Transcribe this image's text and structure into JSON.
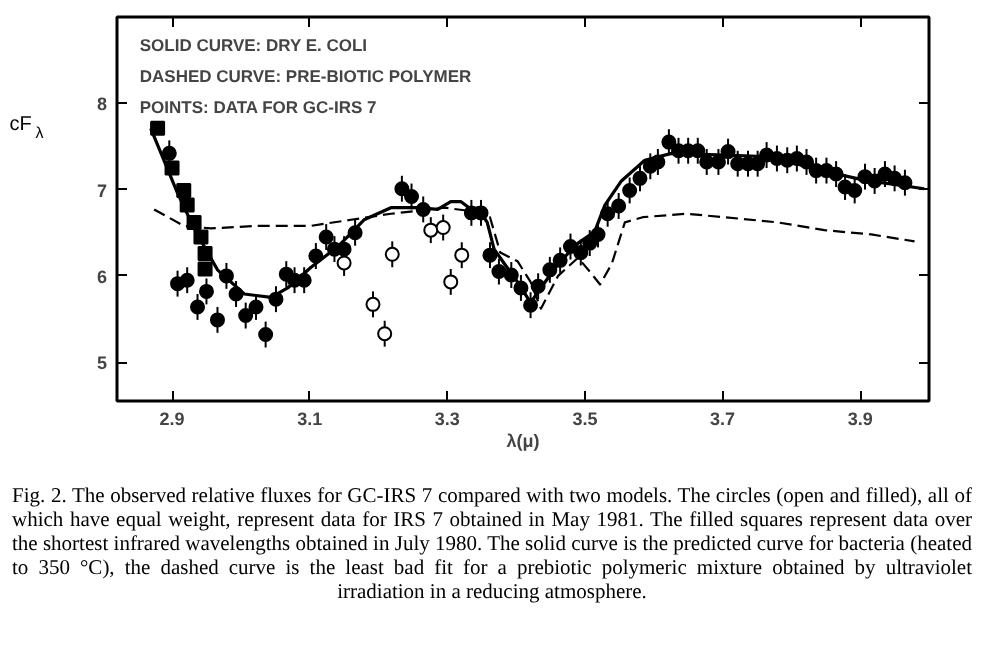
{
  "chart_data": {
    "type": "scatter",
    "xlabel": "λ(μ)",
    "ylabel": "cF$_{λ}$",
    "xlim": [
      2.82,
      4.0
    ],
    "ylim": [
      4.55,
      9.0
    ],
    "xticks": [
      2.9,
      3.1,
      3.3,
      3.5,
      3.7,
      3.9
    ],
    "yticks": [
      5,
      6,
      7,
      8
    ],
    "grid": false,
    "annotations": [
      "SOLID CURVE:  DRY E. COLI",
      "DASHED CURVE: PRE-BIOTIC POLYMER",
      "POINTS:  DATA FOR GC-IRS 7",
      "Fig. 2.   The observed relative fluxes for GC-IRS 7 compared with two models. The circles (open and filled), all of which have equal weight, represent data for IRS 7 obtained in May 1981. The filled squares represent data over the shortest infrared wavelengths obtained in July 1980. The solid curve is the predicted curve for bacteria (heated to 350 °C), the dashed curve is the least bad fit for a prebiotic polymeric mixture obtained by ultraviolet irradiation in a reducing atmosphere."
    ],
    "series": [
      {
        "type": "line",
        "color": "#000000",
        "line_style": "solid",
        "marker": "none",
        "x": [
          2.869,
          2.908,
          2.932,
          2.966,
          3.005,
          3.044,
          3.068,
          3.102,
          3.141,
          3.179,
          3.218,
          3.257,
          3.286,
          3.305,
          3.32,
          3.335,
          3.344,
          3.358,
          3.368,
          3.383,
          3.402,
          3.421,
          3.436,
          3.461,
          3.49,
          3.514,
          3.529,
          3.553,
          3.587,
          3.626,
          3.703,
          3.771,
          3.838,
          3.906,
          3.993
        ],
        "values": [
          7.71,
          6.96,
          6.55,
          6.07,
          5.79,
          5.75,
          5.86,
          6.1,
          6.34,
          6.65,
          6.79,
          6.79,
          6.77,
          6.86,
          6.86,
          6.77,
          6.79,
          6.62,
          6.31,
          6.14,
          5.93,
          5.69,
          5.86,
          6.14,
          6.38,
          6.51,
          6.82,
          7.1,
          7.34,
          7.42,
          7.4,
          7.38,
          7.23,
          7.11,
          7.01
        ]
      },
      {
        "type": "line",
        "color": "#000000",
        "line_style": "dashed",
        "marker": "none",
        "x": [
          2.874,
          2.917,
          2.956,
          3.024,
          3.102,
          3.16,
          3.218,
          3.296,
          3.335,
          3.362,
          3.377,
          3.402,
          3.421,
          3.436,
          3.461,
          3.49,
          3.508,
          3.522,
          3.539,
          3.558,
          3.584,
          3.646,
          3.703,
          3.78,
          3.848,
          3.916,
          3.979
        ],
        "values": [
          6.77,
          6.58,
          6.55,
          6.58,
          6.58,
          6.65,
          6.72,
          6.79,
          6.75,
          6.68,
          6.27,
          6.17,
          5.93,
          5.62,
          6.0,
          6.21,
          6.04,
          5.9,
          6.14,
          6.62,
          6.68,
          6.72,
          6.68,
          6.62,
          6.53,
          6.48,
          6.4
        ]
      },
      {
        "color": "#000000",
        "marker": "square",
        "x": [
          2.879,
          2.9,
          2.917,
          2.922,
          2.932,
          2.942,
          2.948,
          2.948
        ],
        "values": [
          7.71,
          7.25,
          6.99,
          6.82,
          6.62,
          6.45,
          6.26,
          6.08
        ]
      },
      {
        "color": "#000000",
        "marker": "circle",
        "x": [
          2.896,
          2.908,
          2.922,
          2.937,
          2.95,
          2.966,
          2.979,
          2.993,
          3.007,
          3.022,
          3.036,
          3.051,
          3.066,
          3.078,
          3.092,
          3.109,
          3.124,
          3.136,
          3.15,
          3.166,
          3.234,
          3.248,
          3.265,
          3.335,
          3.349,
          3.362,
          3.375,
          3.393,
          3.407,
          3.421,
          3.432,
          3.449,
          3.464,
          3.479,
          3.494,
          3.507,
          3.519,
          3.533,
          3.549,
          3.565,
          3.58,
          3.595,
          3.606,
          3.622,
          3.636,
          3.65,
          3.664,
          3.677,
          3.694,
          3.708,
          3.722,
          3.737,
          3.751,
          3.764,
          3.779,
          3.794,
          3.808,
          3.822,
          3.836,
          3.851,
          3.865,
          3.878,
          3.892,
          3.907,
          3.921,
          3.936,
          3.95,
          3.965
        ],
        "values": [
          7.42,
          5.91,
          5.95,
          5.64,
          5.82,
          5.49,
          6.0,
          5.79,
          5.54,
          5.64,
          5.32,
          5.73,
          6.02,
          5.95,
          5.95,
          6.23,
          6.45,
          6.31,
          6.31,
          6.5,
          7.01,
          6.92,
          6.77,
          6.73,
          6.73,
          6.24,
          6.05,
          6.01,
          5.86,
          5.66,
          5.88,
          6.07,
          6.18,
          6.34,
          6.27,
          6.38,
          6.48,
          6.72,
          6.81,
          6.99,
          7.13,
          7.27,
          7.32,
          7.55,
          7.45,
          7.45,
          7.45,
          7.32,
          7.32,
          7.44,
          7.3,
          7.3,
          7.3,
          7.4,
          7.36,
          7.34,
          7.36,
          7.32,
          7.22,
          7.22,
          7.18,
          7.03,
          6.99,
          7.15,
          7.1,
          7.18,
          7.13,
          7.08
        ],
        "errors": [
          0.15,
          0.15,
          0.15,
          0.15,
          0.15,
          0.15,
          0.15,
          0.15,
          0.15,
          0.15,
          0.15,
          0.15,
          0.15,
          0.15,
          0.15,
          0.15,
          0.15,
          0.15,
          0.15,
          0.15,
          0.15,
          0.15,
          0.15,
          0.15,
          0.15,
          0.15,
          0.15,
          0.15,
          0.15,
          0.15,
          0.15,
          0.15,
          0.15,
          0.15,
          0.15,
          0.15,
          0.15,
          0.15,
          0.15,
          0.15,
          0.15,
          0.15,
          0.15,
          0.15,
          0.15,
          0.15,
          0.15,
          0.15,
          0.15,
          0.15,
          0.15,
          0.15,
          0.15,
          0.15,
          0.15,
          0.15,
          0.15,
          0.15,
          0.15,
          0.15,
          0.15,
          0.15,
          0.15,
          0.15,
          0.15,
          0.15,
          0.15,
          0.15
        ]
      },
      {
        "color": "#ffffff",
        "marker": "circle",
        "x": [
          3.15,
          3.192,
          3.209,
          3.22,
          3.276,
          3.294,
          3.305,
          3.321
        ],
        "values": [
          6.15,
          5.67,
          5.33,
          6.25,
          6.53,
          6.56,
          5.93,
          6.24
        ],
        "errors": [
          0.15,
          0.15,
          0.15,
          0.15,
          0.15,
          0.15,
          0.15,
          0.15
        ]
      }
    ]
  }
}
